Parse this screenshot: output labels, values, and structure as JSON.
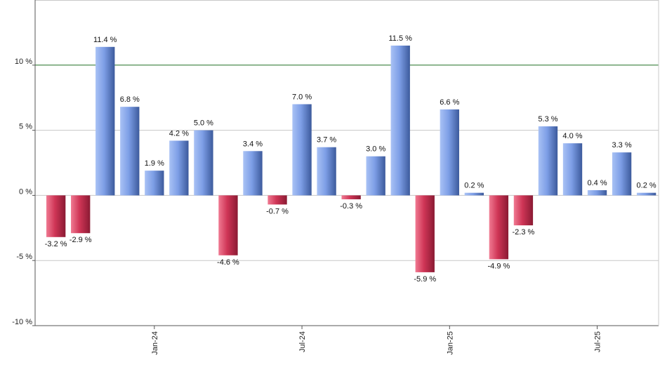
{
  "chart_data": {
    "type": "bar",
    "title": "",
    "xlabel": "",
    "ylabel": "",
    "ylim": [
      -10,
      15
    ],
    "y_ticks": [
      -10,
      -5,
      0,
      5,
      10
    ],
    "y_tick_labels": [
      "-10 %",
      "-5 %",
      "0 %",
      "5 %",
      "10 %"
    ],
    "grid": true,
    "reference_line": 10,
    "reference_line_color": "#2e7d32",
    "positive_color": "#6f8fd8",
    "negative_color": "#c8304f",
    "x_tick_labels": [
      {
        "label": "Jan-24",
        "index": 4
      },
      {
        "label": "Jul-24",
        "index": 10
      },
      {
        "label": "Jan-25",
        "index": 16
      },
      {
        "label": "Jul-25",
        "index": 22
      }
    ],
    "values": [
      -3.2,
      -2.9,
      11.4,
      6.8,
      1.9,
      4.2,
      5.0,
      -4.6,
      3.4,
      -0.7,
      7.0,
      3.7,
      -0.3,
      3.0,
      11.5,
      -5.9,
      6.6,
      0.2,
      -4.9,
      -2.3,
      5.3,
      4.0,
      0.4,
      3.3,
      0.2
    ],
    "value_labels": [
      "-3.2 %",
      "-2.9 %",
      "11.4 %",
      "6.8 %",
      "1.9 %",
      "4.2 %",
      "5.0 %",
      "-4.6 %",
      "3.4 %",
      "-0.7 %",
      "7.0 %",
      "3.7 %",
      "-0.3 %",
      "3.0 %",
      "11.5 %",
      "-5.9 %",
      "6.6 %",
      "0.2 %",
      "-4.9 %",
      "-2.3 %",
      "5.3 %",
      "4.0 %",
      "0.4 %",
      "3.3 %",
      "0.2 %"
    ]
  }
}
